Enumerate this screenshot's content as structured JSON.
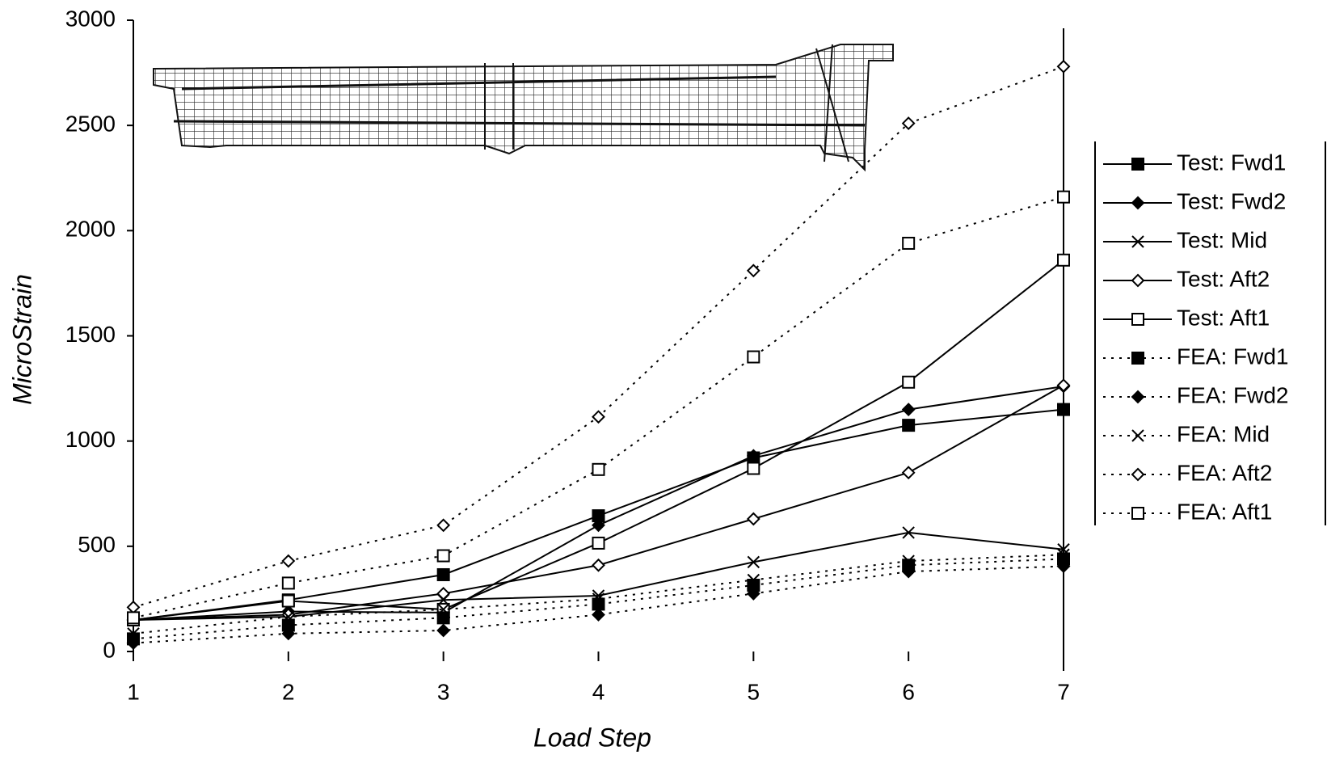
{
  "chart_data": {
    "type": "line",
    "x_label": "Load Step",
    "y_label": "MicroStrain",
    "x": [
      1,
      2,
      3,
      4,
      5,
      6,
      7
    ],
    "xlim": [
      1,
      7
    ],
    "xticks": [
      1,
      2,
      3,
      4,
      5,
      6,
      7
    ],
    "ylim": [
      0,
      3000
    ],
    "yticks": [
      0,
      500,
      1000,
      1500,
      2000,
      2500,
      3000
    ],
    "series": [
      {
        "name": "Test: Fwd1",
        "color": "#000000",
        "marker": "square",
        "filled": true,
        "line_style": "solid",
        "values": [
          150,
          245,
          365,
          645,
          920,
          1075,
          1150
        ]
      },
      {
        "name": "Test: Fwd2",
        "color": "#000000",
        "marker": "diamond",
        "filled": true,
        "line_style": "solid",
        "values": [
          150,
          190,
          185,
          600,
          930,
          1150,
          1260
        ]
      },
      {
        "name": "Test: Mid",
        "color": "#000000",
        "marker": "x",
        "filled": false,
        "line_style": "solid",
        "values": [
          150,
          165,
          245,
          265,
          425,
          565,
          485
        ]
      },
      {
        "name": "Test: Aft2",
        "color": "#000000",
        "marker": "diamond",
        "filled": false,
        "line_style": "solid",
        "values": [
          150,
          175,
          275,
          410,
          630,
          850,
          1265
        ]
      },
      {
        "name": "Test: Aft1",
        "color": "#000000",
        "marker": "square",
        "filled": false,
        "line_style": "solid",
        "values": [
          150,
          240,
          200,
          515,
          870,
          1280,
          1860
        ]
      },
      {
        "name": "FEA: Fwd1",
        "color": "#000000",
        "marker": "square",
        "filled": true,
        "line_style": "dotted",
        "values": [
          60,
          125,
          160,
          225,
          315,
          410,
          440
        ]
      },
      {
        "name": "FEA: Fwd2",
        "color": "#000000",
        "marker": "diamond",
        "filled": true,
        "line_style": "dotted",
        "values": [
          40,
          85,
          100,
          175,
          275,
          380,
          405
        ]
      },
      {
        "name": "FEA: Mid",
        "color": "#000000",
        "marker": "x",
        "filled": false,
        "line_style": "dotted",
        "values": [
          85,
          165,
          200,
          250,
          340,
          430,
          460
        ]
      },
      {
        "name": "FEA: Aft2",
        "color": "#000000",
        "marker": "diamond",
        "filled": false,
        "line_style": "dotted",
        "values": [
          210,
          430,
          600,
          1115,
          1810,
          2510,
          2780
        ]
      },
      {
        "name": "FEA: Aft1",
        "color": "#000000",
        "marker": "square",
        "filled": false,
        "line_style": "dotted",
        "values": [
          160,
          325,
          455,
          865,
          1400,
          1940,
          2160
        ]
      }
    ]
  }
}
